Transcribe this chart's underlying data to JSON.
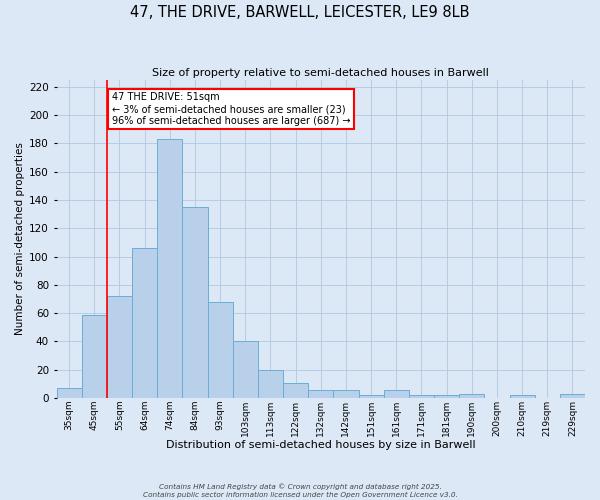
{
  "title": "47, THE DRIVE, BARWELL, LEICESTER, LE9 8LB",
  "subtitle": "Size of property relative to semi-detached houses in Barwell",
  "xlabel": "Distribution of semi-detached houses by size in Barwell",
  "ylabel": "Number of semi-detached properties",
  "bin_labels": [
    "35sqm",
    "45sqm",
    "55sqm",
    "64sqm",
    "74sqm",
    "84sqm",
    "93sqm",
    "103sqm",
    "113sqm",
    "122sqm",
    "132sqm",
    "142sqm",
    "151sqm",
    "161sqm",
    "171sqm",
    "181sqm",
    "190sqm",
    "200sqm",
    "210sqm",
    "219sqm",
    "229sqm"
  ],
  "bin_values": [
    7,
    59,
    72,
    106,
    183,
    135,
    68,
    40,
    20,
    11,
    6,
    6,
    2,
    6,
    2,
    2,
    3,
    0,
    2,
    0,
    3
  ],
  "bar_color": "#b8d0ea",
  "bar_edge_color": "#6aaed6",
  "bg_color": "#dce8f5",
  "grid_color": "#b0c8e0",
  "vline_x_index": 1.5,
  "vline_color": "red",
  "annotation_title": "47 THE DRIVE: 51sqm",
  "annotation_line1": "← 3% of semi-detached houses are smaller (23)",
  "annotation_line2": "96% of semi-detached houses are larger (687) →",
  "annotation_box_color": "white",
  "annotation_box_edge": "red",
  "ylim": [
    0,
    225
  ],
  "yticks": [
    0,
    20,
    40,
    60,
    80,
    100,
    120,
    140,
    160,
    180,
    200,
    220
  ],
  "footer1": "Contains HM Land Registry data © Crown copyright and database right 2025.",
  "footer2": "Contains public sector information licensed under the Open Government Licence v3.0."
}
